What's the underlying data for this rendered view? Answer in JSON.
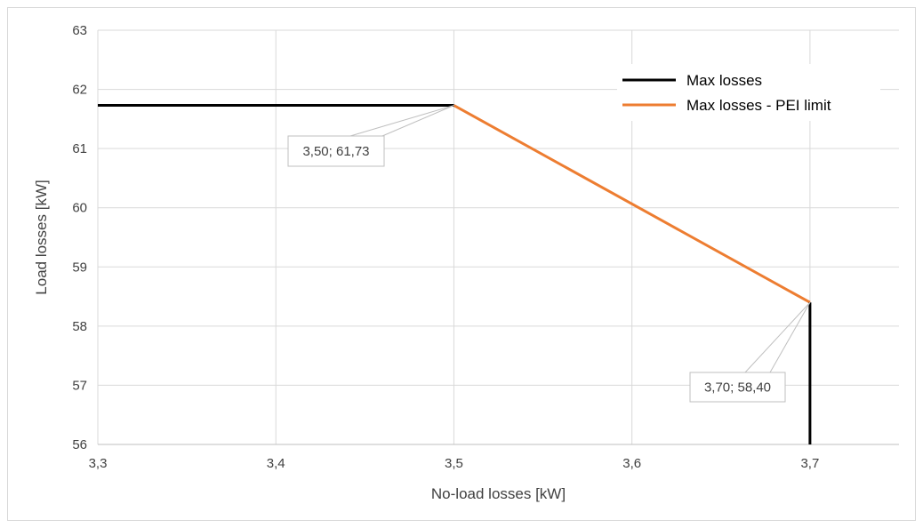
{
  "chart_data": {
    "type": "line",
    "title": "",
    "xlabel": "No-load losses [kW]",
    "ylabel": "Load losses [kW]",
    "xlim": [
      3.3,
      3.75
    ],
    "ylim": [
      56,
      63
    ],
    "xticks": [
      3.3,
      3.4,
      3.5,
      3.6,
      3.7
    ],
    "xtick_labels": [
      "3,3",
      "3,4",
      "3,5",
      "3,6",
      "3,7"
    ],
    "yticks": [
      56,
      57,
      58,
      59,
      60,
      61,
      62,
      63
    ],
    "ytick_labels": [
      "56",
      "57",
      "58",
      "59",
      "60",
      "61",
      "62",
      "63"
    ],
    "grid": true,
    "legend_position": "top-right",
    "series": [
      {
        "name": "Max losses",
        "color": "#000000",
        "segments": [
          {
            "x": [
              3.3,
              3.5
            ],
            "y": [
              61.73,
              61.73
            ]
          },
          {
            "x": [
              3.7,
              3.7
            ],
            "y": [
              58.4,
              56
            ]
          }
        ]
      },
      {
        "name": "Max losses - PEI limit",
        "color": "#ED7D31",
        "segments": [
          {
            "x": [
              3.5,
              3.7
            ],
            "y": [
              61.73,
              58.4
            ]
          }
        ]
      }
    ],
    "annotations": [
      {
        "text": "3,50; 61,73",
        "x": 3.5,
        "y": 61.73
      },
      {
        "text": "3,70; 58,40",
        "x": 3.7,
        "y": 58.4
      }
    ]
  }
}
